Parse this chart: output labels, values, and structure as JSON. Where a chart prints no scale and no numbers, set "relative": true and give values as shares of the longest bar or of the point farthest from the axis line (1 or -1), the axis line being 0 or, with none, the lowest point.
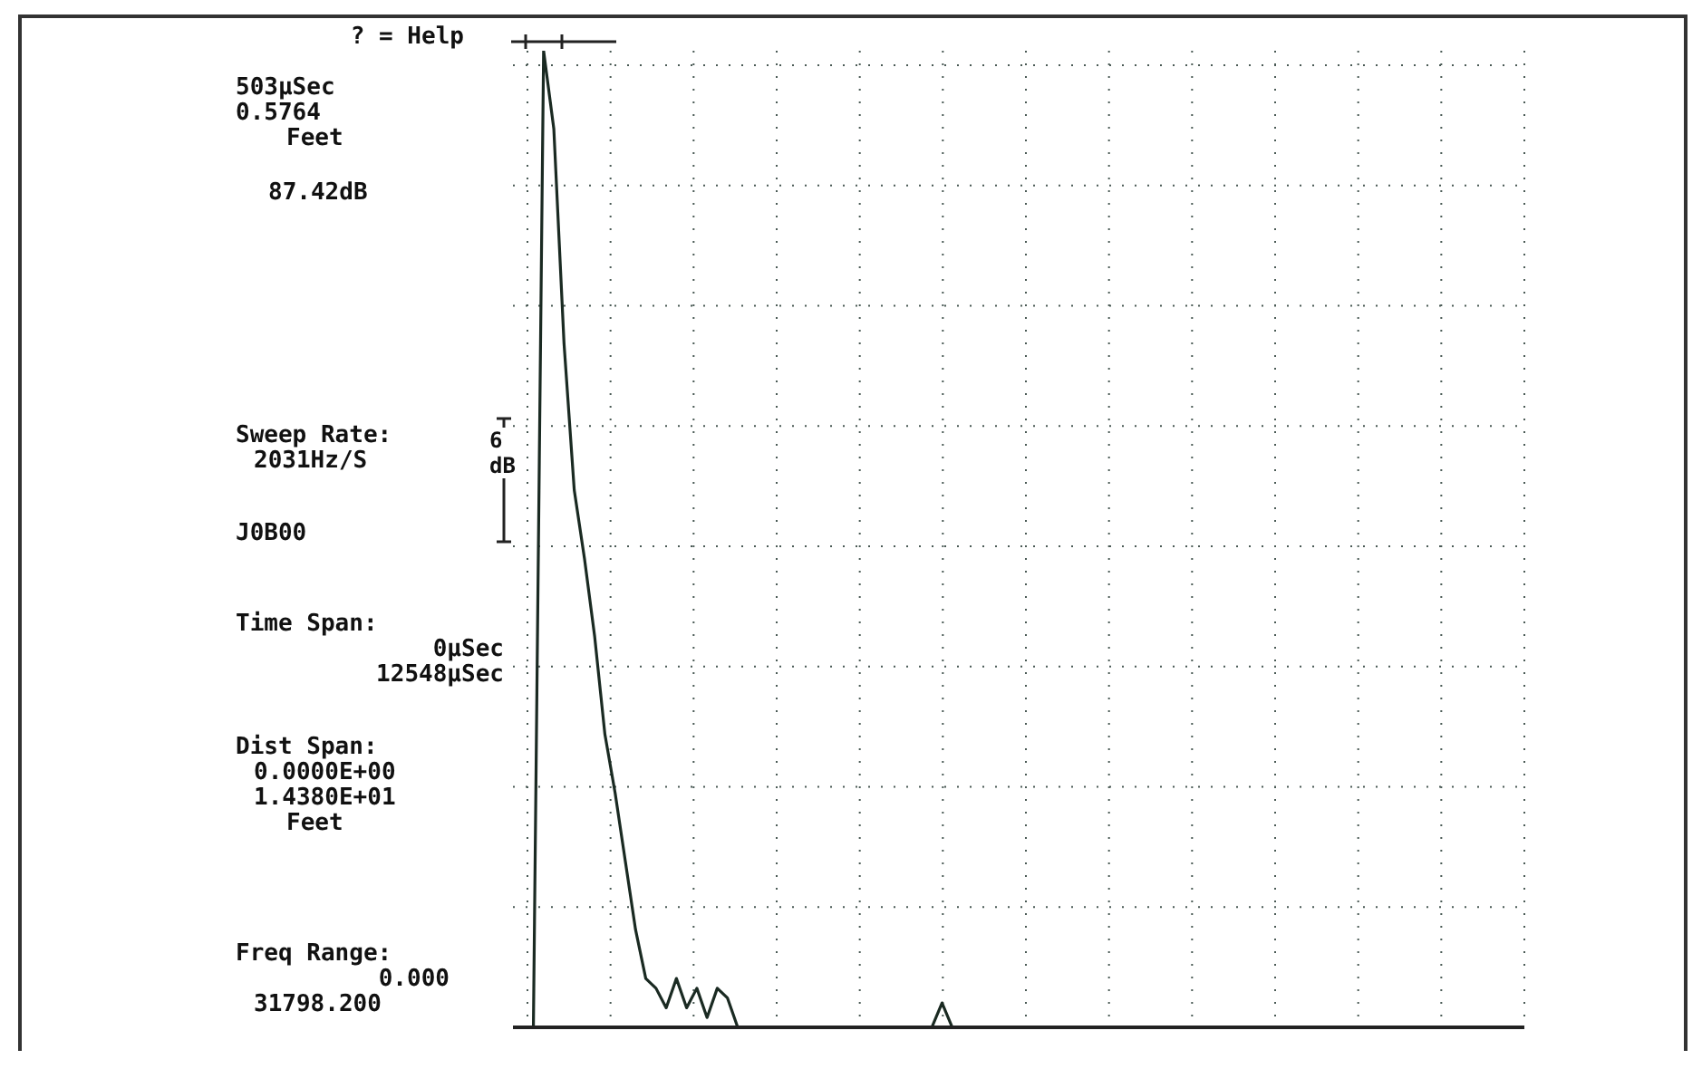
{
  "chart_data": {
    "type": "line",
    "relative": true,
    "grid": true,
    "marker": "none",
    "line_style": "solid",
    "categories": [
      null,
      null,
      null,
      null,
      null,
      null,
      null,
      null,
      null,
      null,
      null,
      null,
      null,
      null,
      null,
      null,
      null,
      null,
      null,
      null,
      null,
      null,
      null,
      null,
      null,
      null,
      null,
      null,
      null,
      null,
      null,
      null,
      null,
      null,
      null,
      null,
      null,
      null,
      null,
      null,
      null,
      null,
      null,
      null,
      null,
      null,
      null,
      null,
      null,
      null,
      null,
      null,
      null,
      null,
      null,
      null,
      null,
      null,
      null,
      null,
      null,
      null,
      null,
      null,
      null,
      null,
      null,
      null,
      null,
      null,
      null,
      null,
      null,
      null,
      null,
      null,
      null,
      null,
      null,
      null,
      null,
      null,
      null,
      null,
      null,
      null,
      null,
      null,
      null,
      null,
      null,
      null,
      null,
      null,
      null,
      null,
      null,
      null,
      null,
      null
    ],
    "series": [
      {
        "color": "#1a2a22",
        "values": [
          0,
          0,
          0,
          1,
          0.92,
          0.7,
          0.55,
          0.48,
          0.4,
          0.3,
          0.24,
          0.17,
          0.1,
          0.05,
          0.04,
          0.02,
          0.05,
          0.02,
          0.04,
          0.01,
          0.04,
          0.03,
          0,
          0,
          0,
          0,
          0,
          0,
          0,
          0,
          0,
          0,
          0,
          0,
          0,
          0,
          0,
          0,
          0,
          0,
          0,
          0,
          0.025,
          0,
          0,
          0,
          0,
          0,
          0,
          0,
          0,
          0,
          0,
          0,
          0,
          0,
          0,
          0,
          0,
          0,
          0,
          0,
          0,
          0,
          0,
          0,
          0,
          0,
          0,
          0,
          0,
          0,
          0,
          0,
          0,
          0,
          0,
          0,
          0,
          0,
          0,
          0,
          0,
          0,
          0,
          0,
          0,
          0,
          0,
          0,
          0,
          0,
          0,
          0,
          0,
          0,
          0,
          0,
          0,
          0
        ]
      }
    ],
    "annotations": [
      "? = Help",
      "503µSec",
      "0.5764",
      "Feet",
      "87.42dB",
      "Sweep Rate:",
      "2031Hz/S",
      "6 dB",
      "J0B00",
      "Time Span:",
      "0µSec",
      "12548µSec",
      "Dist Span:",
      "0.0000E+00",
      "1.4380E+01",
      "Feet",
      "Freq Range:",
      "0.000",
      "31798.200"
    ]
  }
}
